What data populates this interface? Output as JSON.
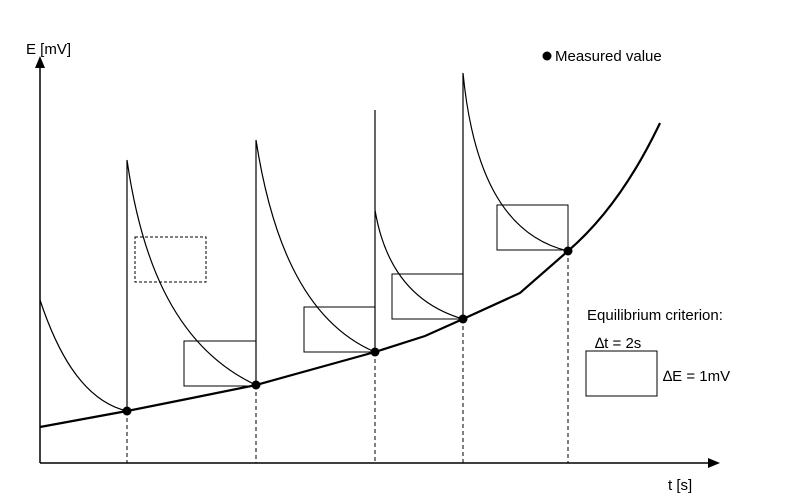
{
  "axes": {
    "y_label": "E [mV]",
    "x_label": "t [s]"
  },
  "legend": {
    "marker_label": "Measured value"
  },
  "criterion": {
    "title": "Equilibrium criterion:",
    "dt_label": "∆t = 2s",
    "de_label": "∆E = 1mV"
  },
  "colors": {
    "ink": "#000000",
    "background": "#ffffff"
  }
}
